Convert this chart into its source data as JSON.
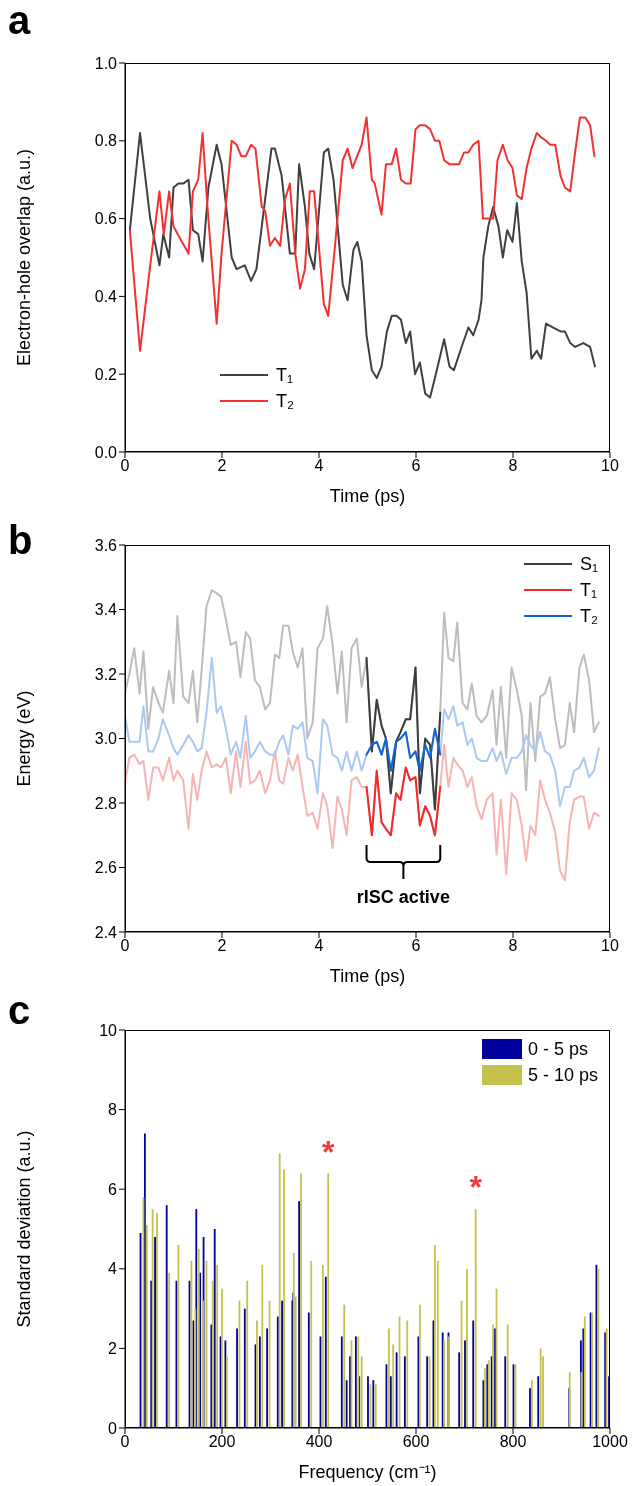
{
  "chart_data": [
    {
      "type": "line",
      "title": "a",
      "xlabel": "Time (ps)",
      "ylabel": "Electron-hole overlap (a.u.)",
      "xlim": [
        0,
        10
      ],
      "ylim": [
        0,
        1
      ],
      "xticks": [
        0,
        2,
        4,
        6,
        8,
        10
      ],
      "yticks": [
        {
          "value": 0,
          "label": "0.0"
        },
        0.2,
        0.4,
        0.6,
        0.8,
        {
          "value": 1,
          "label": "1.0"
        }
      ],
      "legend": "bottom left",
      "series": [
        {
          "name": "T₁",
          "color": "#404040",
          "x": [
            0.1,
            0.31,
            0.52,
            0.71,
            0.79,
            0.91,
            1.0,
            1.1,
            1.2,
            1.31,
            1.4,
            1.51,
            1.6,
            1.72,
            1.89,
            1.99,
            2.2,
            2.3,
            2.47,
            2.6,
            2.71,
            2.85,
            3.02,
            3.09,
            3.23,
            3.4,
            3.51,
            3.59,
            3.71,
            3.8,
            3.9,
            4.1,
            4.19,
            4.3,
            4.49,
            4.59,
            4.71,
            4.79,
            4.88,
            4.98,
            5.09,
            5.19,
            5.29,
            5.4,
            5.5,
            5.6,
            5.69,
            5.79,
            5.88,
            5.98,
            6.08,
            6.19,
            6.29,
            6.39,
            6.58,
            6.69,
            6.78,
            6.94,
            7.08,
            7.18,
            7.29,
            7.35,
            7.39,
            7.49,
            7.59,
            7.7,
            7.79,
            7.88,
            7.99,
            8.08,
            8.18,
            8.28,
            8.38,
            8.49,
            8.58,
            8.68,
            8.83,
            8.98,
            9.07,
            9.18,
            9.28,
            9.45,
            9.59,
            9.69
          ],
          "values": [
            0.57,
            0.82,
            0.6,
            0.48,
            0.56,
            0.5,
            0.68,
            0.69,
            0.69,
            0.7,
            0.57,
            0.56,
            0.49,
            0.68,
            0.79,
            0.74,
            0.5,
            0.47,
            0.48,
            0.44,
            0.47,
            0.61,
            0.78,
            0.78,
            0.71,
            0.51,
            0.51,
            0.74,
            0.63,
            0.51,
            0.47,
            0.77,
            0.78,
            0.7,
            0.43,
            0.39,
            0.52,
            0.54,
            0.49,
            0.3,
            0.21,
            0.19,
            0.22,
            0.31,
            0.35,
            0.35,
            0.34,
            0.28,
            0.31,
            0.2,
            0.23,
            0.15,
            0.14,
            0.19,
            0.29,
            0.22,
            0.21,
            0.27,
            0.32,
            0.3,
            0.34,
            0.39,
            0.5,
            0.58,
            0.63,
            0.58,
            0.5,
            0.57,
            0.54,
            0.64,
            0.49,
            0.41,
            0.24,
            0.26,
            0.24,
            0.33,
            0.32,
            0.31,
            0.31,
            0.28,
            0.27,
            0.28,
            0.27,
            0.22
          ]
        },
        {
          "name": "T₂",
          "color": "#f03232",
          "x": [
            0.1,
            0.31,
            0.52,
            0.71,
            0.8,
            0.91,
            1.0,
            1.13,
            1.31,
            1.4,
            1.51,
            1.6,
            1.7,
            1.89,
            1.99,
            2.2,
            2.3,
            2.4,
            2.49,
            2.6,
            2.69,
            2.82,
            2.89,
            2.99,
            3.09,
            3.2,
            3.3,
            3.4,
            3.51,
            3.61,
            3.71,
            3.81,
            3.9,
            4.1,
            4.19,
            4.33,
            4.49,
            4.59,
            4.69,
            4.88,
            4.98,
            5.09,
            5.15,
            5.29,
            5.38,
            5.5,
            5.59,
            5.69,
            5.79,
            5.89,
            5.99,
            6.08,
            6.19,
            6.29,
            6.39,
            6.48,
            6.58,
            6.69,
            6.8,
            6.89,
            6.99,
            7.08,
            7.18,
            7.29,
            7.38,
            7.49,
            7.59,
            7.68,
            7.79,
            7.89,
            7.99,
            8.08,
            8.18,
            8.28,
            8.38,
            8.49,
            8.57,
            8.68,
            8.77,
            8.87,
            8.98,
            9.07,
            9.18,
            9.28,
            9.38,
            9.49,
            9.59,
            9.68
          ],
          "values": [
            0.57,
            0.26,
            0.48,
            0.67,
            0.56,
            0.67,
            0.58,
            0.55,
            0.51,
            0.67,
            0.7,
            0.82,
            0.63,
            0.33,
            0.51,
            0.8,
            0.79,
            0.76,
            0.76,
            0.79,
            0.78,
            0.63,
            0.62,
            0.53,
            0.55,
            0.53,
            0.65,
            0.69,
            0.51,
            0.42,
            0.47,
            0.67,
            0.67,
            0.38,
            0.35,
            0.53,
            0.75,
            0.78,
            0.73,
            0.79,
            0.86,
            0.7,
            0.69,
            0.61,
            0.74,
            0.74,
            0.78,
            0.7,
            0.69,
            0.69,
            0.83,
            0.84,
            0.84,
            0.83,
            0.8,
            0.8,
            0.75,
            0.74,
            0.74,
            0.74,
            0.77,
            0.77,
            0.79,
            0.8,
            0.6,
            0.6,
            0.6,
            0.75,
            0.79,
            0.75,
            0.73,
            0.66,
            0.65,
            0.73,
            0.78,
            0.82,
            0.81,
            0.8,
            0.79,
            0.79,
            0.71,
            0.68,
            0.67,
            0.77,
            0.86,
            0.86,
            0.84,
            0.76
          ]
        }
      ]
    },
    {
      "type": "line",
      "title": "b",
      "xlabel": "Time (ps)",
      "ylabel": "Energy (eV)",
      "xlim": [
        0,
        10
      ],
      "ylim": [
        2.4,
        3.6
      ],
      "xticks": [
        0,
        2,
        4,
        6,
        8,
        10
      ],
      "yticks": [
        2.4,
        2.6,
        2.8,
        {
          "value": 3,
          "label": "3.0"
        },
        3.2,
        3.4,
        3.6
      ],
      "legend": "top right",
      "annotations": [
        "rISC active"
      ],
      "series": [
        {
          "color": "#bdbdbd",
          "x": [
            0,
            0.09,
            0.19,
            0.3,
            0.38,
            0.48,
            0.58,
            0.69,
            0.78,
            0.91,
            1.0,
            1.08,
            1.2,
            1.31,
            1.4,
            1.49,
            1.58,
            1.68,
            1.79,
            1.89,
            1.98,
            2.08,
            2.18,
            2.29,
            2.38,
            2.49,
            2.58,
            2.68,
            2.78,
            2.89,
            2.99,
            3.09,
            3.18,
            3.26,
            3.37,
            3.46,
            3.56,
            3.66,
            3.76,
            3.87,
            3.97,
            4.08,
            4.17,
            4.28,
            4.38,
            4.47,
            4.57,
            4.67,
            4.78,
            4.88,
            4.98,
            5.09,
            5.19,
            5.29,
            5.38,
            5.48,
            5.59,
            5.68,
            5.79,
            5.88,
            5.99,
            6.08,
            6.19,
            6.29,
            6.39,
            6.5,
            6.58,
            6.67,
            6.77,
            6.85,
            6.96,
            7.06,
            7.15,
            7.25,
            7.35,
            7.46,
            7.58,
            7.66,
            7.75,
            7.86,
            7.97,
            8.08,
            8.18,
            8.27,
            8.36,
            8.46,
            8.56,
            8.66,
            8.76,
            8.87,
            8.97,
            9.07,
            9.17,
            9.26,
            9.37,
            9.46,
            9.57,
            9.67,
            9.77
          ],
          "values": [
            3.14,
            3.2,
            3.28,
            3.14,
            3.27,
            3.03,
            3.16,
            3.11,
            3.08,
            3.21,
            3.11,
            3.38,
            3.13,
            3.11,
            3.21,
            3.05,
            3.21,
            3.41,
            3.46,
            3.45,
            3.44,
            3.37,
            3.29,
            3.3,
            3.19,
            3.33,
            3.31,
            3.18,
            3.16,
            3.09,
            3.11,
            3.26,
            3.25,
            3.35,
            3.35,
            3.27,
            3.22,
            3.28,
            3.0,
            3.05,
            3.28,
            3.31,
            3.41,
            3.29,
            3.14,
            3.27,
            3.05,
            3.28,
            3.31,
            3.16,
            3.25,
            2.96,
            3.12,
            3.04,
            3.0,
            2.83,
            2.99,
            3.02,
            3.06,
            3.06,
            3.22,
            2.83,
            3.0,
            2.98,
            2.78,
            3.08,
            3.39,
            3.25,
            3.24,
            3.36,
            3.11,
            3.09,
            3.17,
            3.07,
            3.05,
            3.07,
            3.15,
            2.98,
            3.16,
            2.94,
            3.22,
            3.15,
            3.07,
            2.84,
            3.11,
            2.93,
            3.13,
            3.14,
            3.19,
            3.06,
            2.97,
            2.98,
            3.11,
            3.02,
            3.22,
            3.26,
            3.18,
            3.02,
            3.05
          ]
        },
        {
          "color": "#f7b4b4",
          "x": [
            0,
            0.09,
            0.19,
            0.3,
            0.38,
            0.48,
            0.58,
            0.69,
            0.78,
            0.91,
            1.0,
            1.08,
            1.2,
            1.31,
            1.4,
            1.49,
            1.58,
            1.68,
            1.79,
            1.89,
            1.98,
            2.08,
            2.18,
            2.29,
            2.38,
            2.49,
            2.58,
            2.68,
            2.78,
            2.89,
            2.99,
            3.09,
            3.18,
            3.26,
            3.37,
            3.46,
            3.56,
            3.66,
            3.76,
            3.87,
            3.97,
            4.08,
            4.17,
            4.28,
            4.38,
            4.47,
            4.57,
            4.67,
            4.78,
            4.88,
            4.98,
            5.09,
            5.19,
            5.29,
            5.38,
            5.48,
            5.59,
            5.68,
            5.79,
            5.88,
            5.99,
            6.08,
            6.19,
            6.29,
            6.39,
            6.5,
            6.58,
            6.67,
            6.77,
            6.85,
            6.96,
            7.06,
            7.15,
            7.25,
            7.35,
            7.46,
            7.58,
            7.66,
            7.75,
            7.86,
            7.97,
            8.08,
            8.18,
            8.27,
            8.36,
            8.46,
            8.56,
            8.66,
            8.76,
            8.87,
            8.97,
            9.07,
            9.17,
            9.26,
            9.37,
            9.46,
            9.57,
            9.67,
            9.77
          ],
          "values": [
            2.86,
            2.94,
            2.95,
            2.92,
            2.93,
            2.81,
            2.91,
            2.91,
            2.87,
            2.94,
            2.87,
            2.9,
            2.87,
            2.72,
            2.89,
            2.81,
            2.9,
            2.96,
            2.91,
            2.92,
            2.91,
            2.94,
            2.83,
            2.96,
            2.85,
            2.99,
            2.86,
            2.87,
            2.9,
            2.83,
            2.87,
            2.96,
            2.87,
            2.86,
            2.94,
            2.9,
            2.95,
            2.85,
            2.76,
            2.77,
            2.72,
            2.83,
            2.79,
            2.66,
            2.82,
            2.78,
            2.7,
            2.87,
            2.88,
            2.85,
            2.85,
            2.7,
            2.9,
            2.74,
            2.72,
            2.7,
            2.83,
            2.81,
            2.91,
            2.87,
            2.88,
            2.73,
            2.79,
            2.76,
            2.7,
            2.85,
            2.98,
            2.85,
            2.94,
            2.92,
            2.9,
            2.85,
            2.88,
            2.79,
            2.75,
            2.81,
            2.83,
            2.64,
            2.81,
            2.58,
            2.83,
            2.81,
            2.73,
            2.62,
            2.73,
            2.7,
            2.87,
            2.81,
            2.77,
            2.71,
            2.59,
            2.56,
            2.74,
            2.81,
            2.82,
            2.82,
            2.72,
            2.77,
            2.76
          ]
        },
        {
          "color": "#a9c9f2",
          "x": [
            0,
            0.09,
            0.19,
            0.3,
            0.38,
            0.48,
            0.58,
            0.69,
            0.78,
            0.91,
            1.0,
            1.08,
            1.2,
            1.31,
            1.4,
            1.49,
            1.58,
            1.68,
            1.79,
            1.89,
            1.98,
            2.08,
            2.18,
            2.29,
            2.38,
            2.49,
            2.58,
            2.68,
            2.78,
            2.89,
            2.99,
            3.09,
            3.18,
            3.26,
            3.37,
            3.46,
            3.56,
            3.66,
            3.76,
            3.87,
            3.97,
            4.08,
            4.17,
            4.28,
            4.38,
            4.47,
            4.57,
            4.67,
            4.78,
            4.88,
            4.98,
            5.09,
            5.19,
            5.29,
            5.38,
            5.48,
            5.59,
            5.68,
            5.79,
            5.88,
            5.99,
            6.08,
            6.19,
            6.29,
            6.39,
            6.5,
            6.58,
            6.67,
            6.77,
            6.85,
            6.96,
            7.06,
            7.15,
            7.25,
            7.35,
            7.46,
            7.58,
            7.66,
            7.75,
            7.86,
            7.97,
            8.08,
            8.18,
            8.27,
            8.36,
            8.46,
            8.56,
            8.66,
            8.76,
            8.87,
            8.97,
            9.07,
            9.17,
            9.26,
            9.37,
            9.46,
            9.57,
            9.67,
            9.77
          ],
          "values": [
            3.07,
            2.99,
            2.99,
            2.99,
            3.1,
            2.96,
            2.96,
            3.0,
            3.06,
            3.01,
            2.97,
            2.95,
            2.98,
            3.01,
            2.99,
            2.96,
            2.97,
            3.08,
            3.25,
            3.08,
            3.1,
            3.03,
            2.95,
            2.99,
            2.94,
            3.07,
            2.94,
            2.96,
            2.99,
            2.96,
            2.95,
            2.95,
            2.99,
            3.01,
            2.95,
            3.04,
            3.03,
            3.05,
            2.94,
            2.93,
            2.83,
            3.06,
            3.04,
            2.95,
            2.94,
            2.9,
            2.96,
            2.9,
            2.96,
            2.9,
            2.95,
            2.98,
            2.99,
            2.95,
            3.0,
            2.9,
            2.99,
            3.0,
            3.02,
            2.94,
            2.96,
            2.9,
            2.98,
            2.94,
            3.03,
            2.95,
            3.09,
            3.06,
            3.1,
            3.04,
            3.05,
            2.98,
            3.0,
            2.94,
            2.93,
            2.93,
            2.97,
            2.93,
            2.96,
            2.89,
            2.94,
            2.94,
            2.96,
            3.01,
            2.98,
            2.96,
            3.02,
            2.96,
            2.95,
            2.9,
            2.79,
            2.85,
            2.85,
            2.9,
            2.91,
            2.94,
            2.88,
            2.9,
            2.97
          ]
        },
        {
          "name": "S₁",
          "color": "#3d3d3d",
          "x": [
            4.98,
            5.09,
            5.19,
            5.29,
            5.38,
            5.48,
            5.59,
            5.68,
            5.79,
            5.88,
            5.99,
            6.08,
            6.19,
            6.29,
            6.39,
            6.5
          ],
          "values": [
            3.25,
            2.96,
            3.12,
            3.04,
            3.0,
            2.83,
            2.99,
            3.02,
            3.06,
            3.06,
            3.22,
            2.83,
            3.0,
            2.98,
            2.78,
            3.08
          ]
        },
        {
          "name": "T₁",
          "color": "#ee2a2a",
          "x": [
            4.98,
            5.09,
            5.19,
            5.29,
            5.38,
            5.48,
            5.59,
            5.68,
            5.79,
            5.88,
            5.99,
            6.08,
            6.19,
            6.29,
            6.39,
            6.5
          ],
          "values": [
            2.85,
            2.7,
            2.9,
            2.74,
            2.72,
            2.7,
            2.83,
            2.81,
            2.91,
            2.87,
            2.88,
            2.73,
            2.79,
            2.76,
            2.7,
            2.85
          ]
        },
        {
          "name": "T₂",
          "color": "#1463d6",
          "x": [
            4.98,
            5.09,
            5.19,
            5.29,
            5.38,
            5.48,
            5.59,
            5.68,
            5.79,
            5.88,
            5.99,
            6.08,
            6.19,
            6.29,
            6.39,
            6.5
          ],
          "values": [
            2.95,
            2.98,
            2.99,
            2.95,
            3.0,
            2.9,
            2.99,
            3.0,
            3.02,
            2.94,
            2.96,
            2.9,
            2.98,
            2.94,
            3.03,
            2.95
          ]
        }
      ]
    },
    {
      "type": "bar",
      "title": "c",
      "xlabel": "Frequency (cm⁻¹)",
      "ylabel": "Standard deviation (a.u.)",
      "xlim": [
        0,
        1000
      ],
      "ylim": [
        0,
        10
      ],
      "xticks": [
        0,
        200,
        400,
        600,
        800,
        1000
      ],
      "yticks": [
        0,
        2,
        4,
        6,
        8,
        10
      ],
      "legend": "top right",
      "annotations": [
        {
          "text": "*",
          "x": 419,
          "y": 6.4
        },
        {
          "text": "*",
          "x": 723,
          "y": 5.5
        }
      ],
      "series": [
        {
          "name": "0 - 5 ps",
          "color": "#00009c",
          "x": [
            32,
            41,
            54,
            62,
            86,
            106,
            133,
            141,
            147,
            155,
            162,
            178,
            185,
            197,
            207,
            231,
            247,
            269,
            278,
            293,
            315,
            324,
            345,
            347,
            359,
            379,
            403,
            414,
            447,
            457,
            464,
            476,
            483,
            501,
            512,
            539,
            548,
            560,
            577,
            605,
            623,
            636,
            655,
            667,
            689,
            701,
            718,
            739,
            747,
            756,
            763,
            784,
            801,
            835,
            852,
            916,
            940,
            945,
            960,
            972,
            990,
            998
          ],
          "values": [
            4.9,
            7.4,
            3.7,
            4.8,
            5.6,
            3.7,
            3.7,
            2.7,
            5.5,
            3.9,
            4.8,
            2.6,
            5.0,
            2.3,
            2.2,
            2.5,
            3.0,
            2.1,
            2.3,
            2.5,
            2.8,
            3.2,
            3.2,
            3.4,
            5.7,
            2.9,
            2.3,
            3.8,
            2.3,
            1.2,
            1.8,
            2.3,
            1.3,
            1.3,
            1.2,
            1.6,
            1.3,
            1.9,
            1.8,
            2.3,
            1.8,
            2.7,
            2.4,
            2.4,
            1.9,
            2.2,
            2.7,
            1.2,
            1.6,
            1.8,
            2.5,
            1.8,
            1.6,
            1.0,
            1.3,
            1.0,
            2.2,
            2.5,
            2.9,
            4.1,
            2.4,
            1.3
          ]
        },
        {
          "name": "5 - 10 ps",
          "color": "#c4c24a",
          "x": [
            38,
            45,
            57,
            66,
            91,
            110,
            137,
            145,
            152,
            161,
            168,
            181,
            190,
            200,
            210,
            236,
            252,
            272,
            283,
            298,
            319,
            328,
            348,
            352,
            363,
            384,
            408,
            419,
            452,
            467,
            481,
            488,
            506,
            517,
            544,
            553,
            566,
            582,
            608,
            628,
            639,
            645,
            658,
            668,
            694,
            705,
            723,
            742,
            750,
            759,
            766,
            789,
            805,
            839,
            857,
            862,
            917,
            941,
            948,
            963,
            976,
            993
          ],
          "values": [
            5.8,
            5.1,
            5.5,
            5.4,
            3.9,
            4.6,
            4.2,
            3.0,
            4.5,
            3.2,
            4.2,
            3.7,
            4.1,
            3.5,
            1.8,
            3.2,
            3.7,
            2.7,
            4.1,
            3.2,
            6.9,
            6.5,
            4.4,
            3.3,
            6.4,
            4.2,
            4.1,
            6.4,
            3.1,
            2.2,
            2.3,
            1.8,
            1.1,
            1.1,
            2.5,
            2.1,
            2.8,
            2.7,
            3.1,
            1.8,
            4.6,
            4.2,
            2.2,
            2.3,
            3.2,
            4.0,
            5.5,
            1.5,
            1.7,
            2.6,
            3.5,
            2.6,
            1.6,
            1.2,
            2.0,
            1.8,
            1.4,
            1.4,
            2.8,
            2.9,
            4.0,
            2.5
          ]
        }
      ]
    }
  ]
}
